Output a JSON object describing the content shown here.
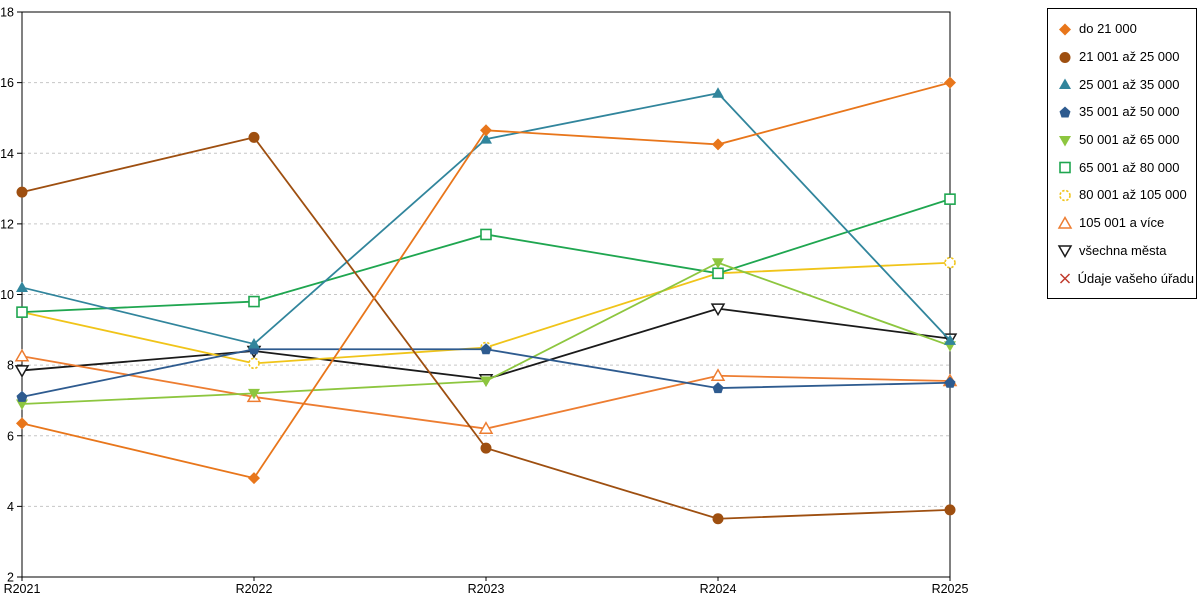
{
  "chart_data": {
    "type": "line",
    "title": "",
    "xlabel": "",
    "ylabel": "",
    "categories": [
      "R2021",
      "R2022",
      "R2023",
      "R2024",
      "R2025"
    ],
    "ylim": [
      2,
      18
    ],
    "ytick_step": 2,
    "grid": "horizontal-dashed",
    "grid_color": "#c6c6c6",
    "axis_color": "#000000",
    "legend_position": "right-outside",
    "series": [
      {
        "name": "do 21 000",
        "color": "#E8761B",
        "marker": "diamond-filled",
        "values": [
          6.35,
          4.8,
          14.65,
          14.25,
          16.0
        ]
      },
      {
        "name": "21 001 až 25 000",
        "color": "#9E4F10",
        "marker": "circle-filled",
        "values": [
          12.9,
          14.45,
          5.65,
          3.65,
          3.9
        ]
      },
      {
        "name": "25 001 až 35 000",
        "color": "#31859C",
        "marker": "triangle-up-filled",
        "values": [
          10.2,
          8.6,
          14.4,
          15.7,
          8.7
        ]
      },
      {
        "name": "35 001 až 50 000",
        "color": "#2E5B8F",
        "marker": "pentagon-filled",
        "values": [
          7.1,
          8.45,
          8.45,
          7.35,
          7.5
        ]
      },
      {
        "name": "50 001 až 65 000",
        "color": "#8DC63F",
        "marker": "triangle-down-filled",
        "values": [
          6.9,
          7.2,
          7.55,
          10.9,
          8.55
        ]
      },
      {
        "name": "65 001 až 80 000",
        "color": "#1FA650",
        "marker": "square-open",
        "values": [
          9.5,
          9.8,
          11.7,
          10.6,
          12.7
        ]
      },
      {
        "name": "80 001 až 105 000",
        "color": "#F0C419",
        "marker": "circle-open-dashed",
        "values": [
          9.5,
          8.05,
          8.5,
          10.6,
          10.9
        ]
      },
      {
        "name": "105 001 a více",
        "color": "#ED7D31",
        "marker": "triangle-up-open",
        "values": [
          8.25,
          7.1,
          6.2,
          7.7,
          7.55
        ]
      },
      {
        "name": "všechna města",
        "color": "#1A1A1A",
        "marker": "triangle-down-open",
        "values": [
          7.85,
          8.4,
          7.6,
          9.6,
          8.75
        ]
      },
      {
        "name": "Údaje vašeho úřadu",
        "color": "#C0392B",
        "marker": "x",
        "values": []
      }
    ]
  }
}
